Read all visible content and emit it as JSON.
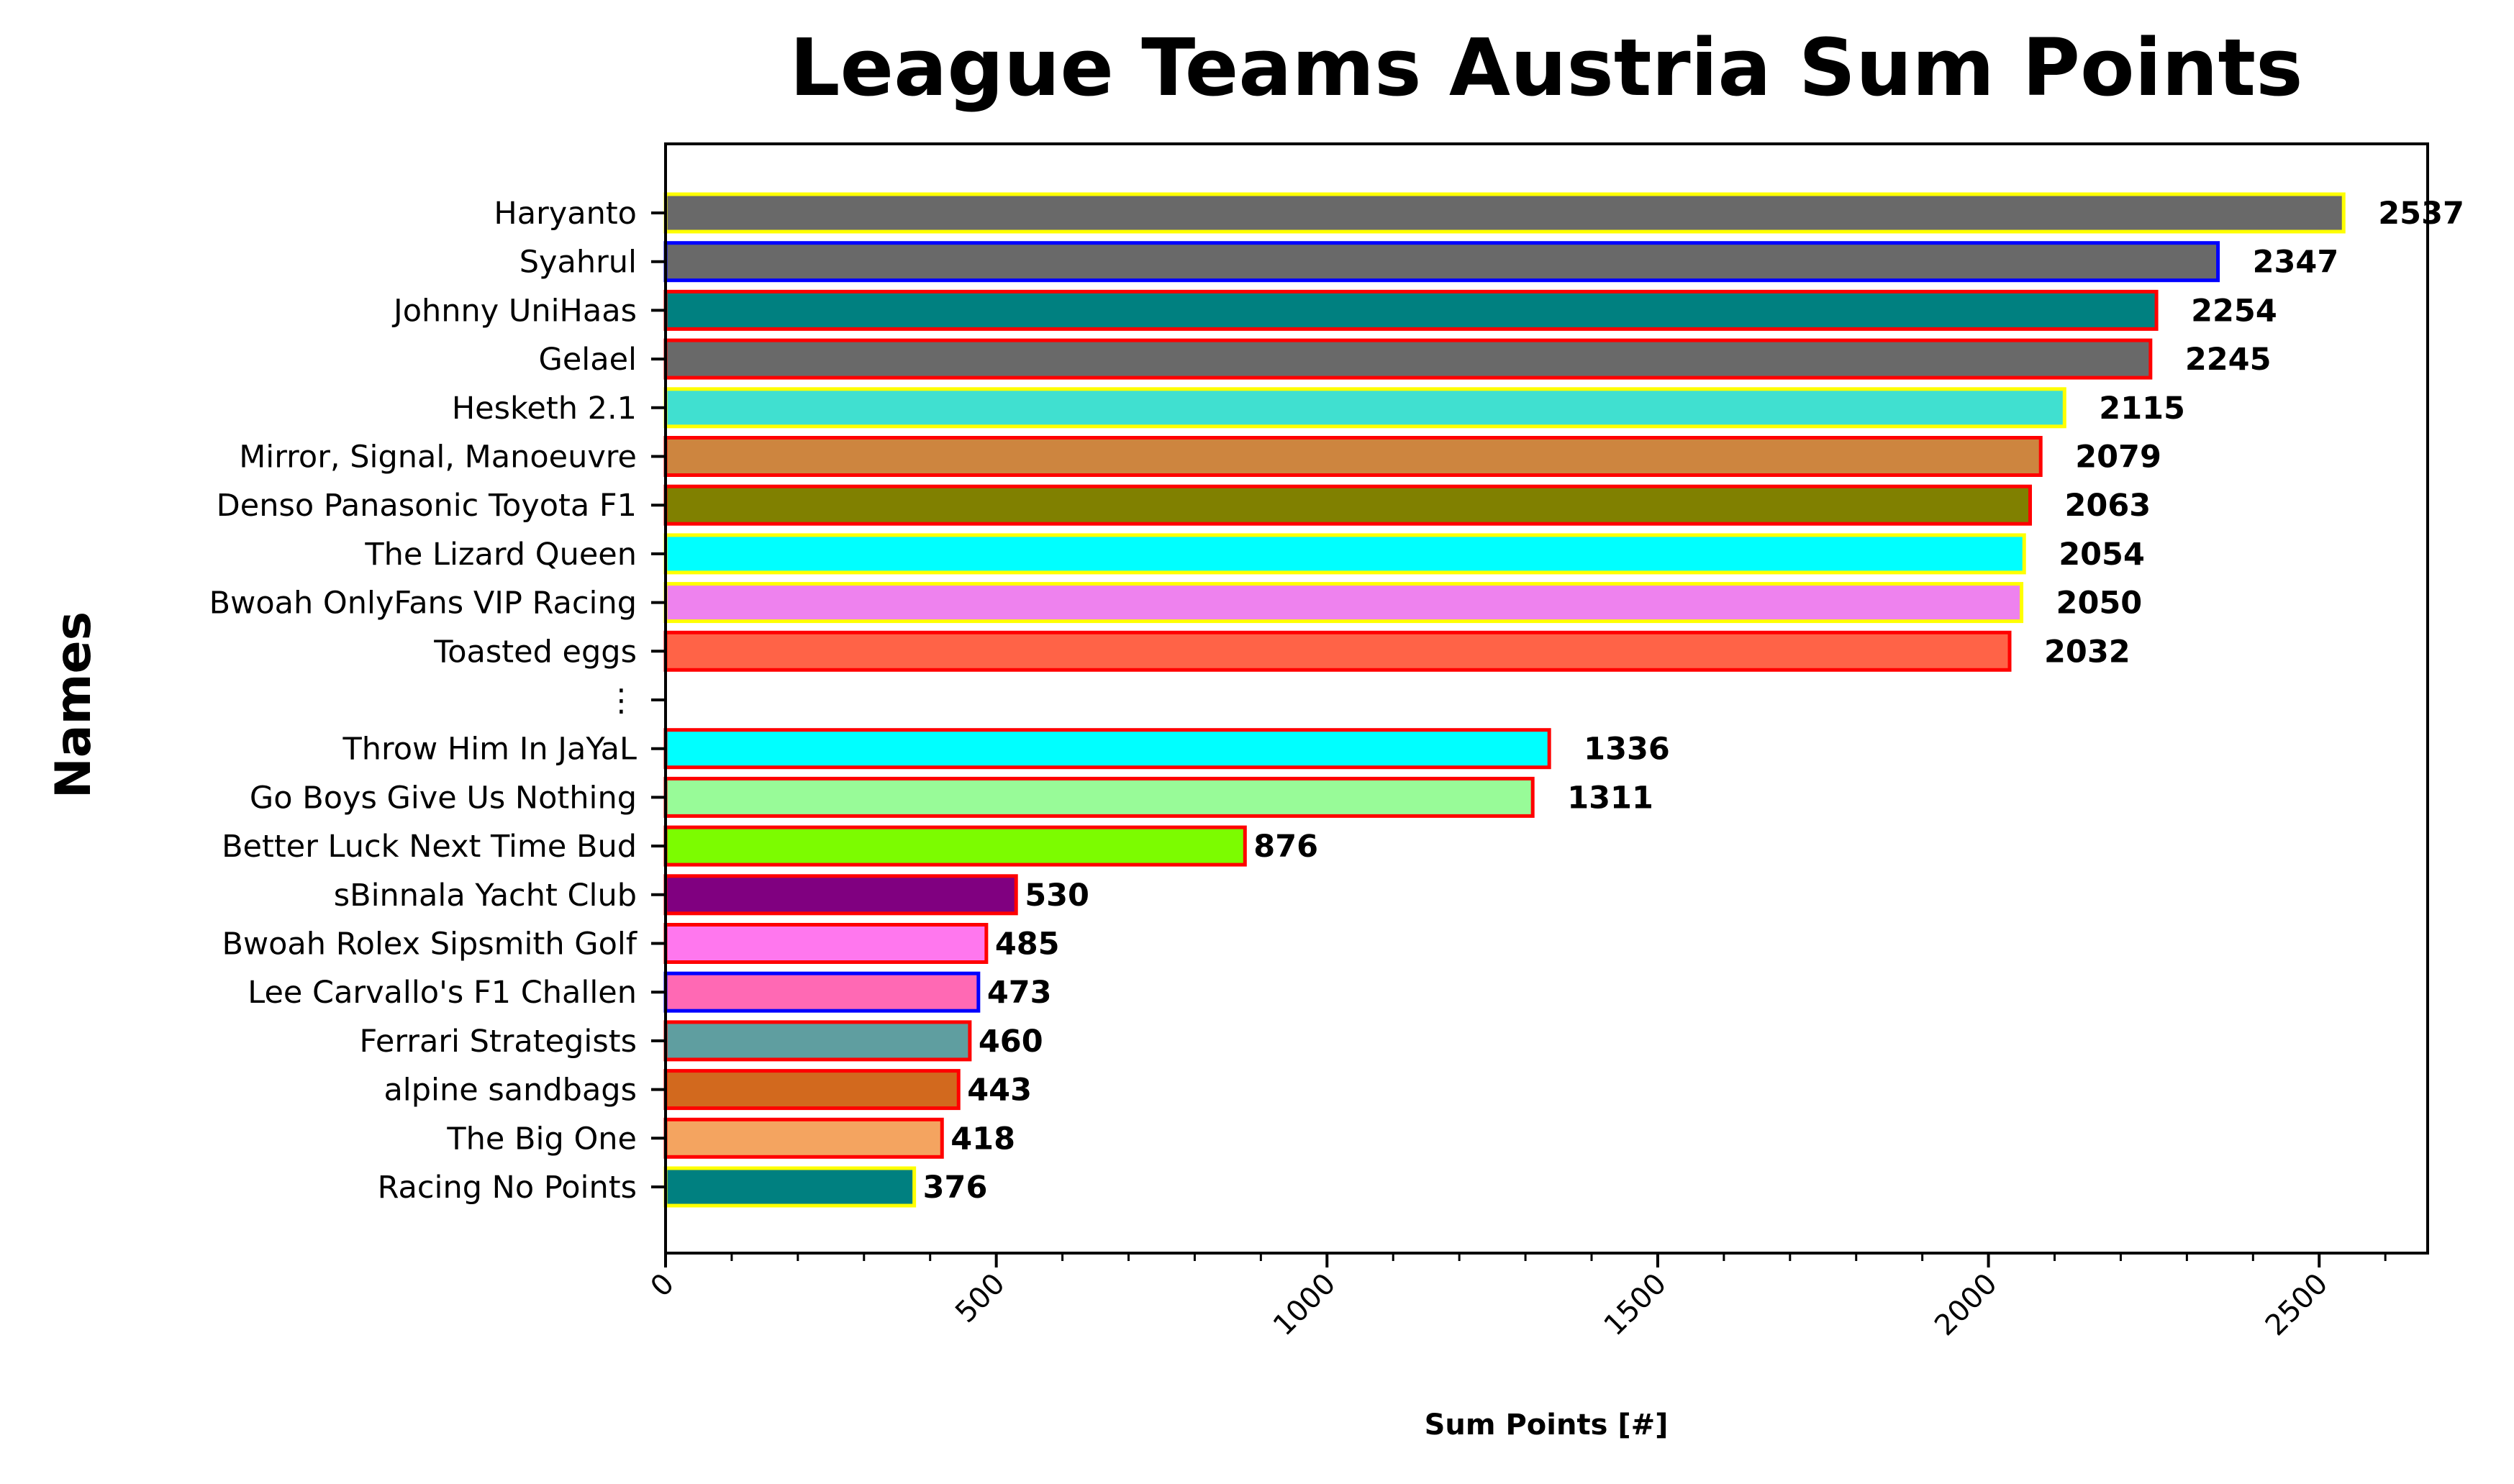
{
  "chart_data": {
    "type": "bar",
    "orientation": "horizontal",
    "title": "League Teams Austria Sum Points",
    "xlabel": "Sum Points [#]",
    "ylabel": "Names",
    "xlim": [
      0,
      2664
    ],
    "xticks": [
      "0",
      "500",
      "1000",
      "1500",
      "2000",
      "2500"
    ],
    "xtick_values": [
      0,
      500,
      1000,
      1500,
      2000,
      2500
    ],
    "grid": false,
    "categories": [
      "Haryanto",
      "Syahrul",
      "Johnny UniHaas",
      "Gelael",
      "Hesketh 2.1",
      "Mirror, Signal, Manoeuvre",
      "Denso Panasonic Toyota F1",
      "The Lizard Queen",
      "Bwoah OnlyFans VIP Racing",
      "Toasted eggs",
      "⋮",
      "Throw Him In JaYaL",
      "Go Boys Give Us Nothing",
      "Better Luck Next Time Bud",
      "sBinnala Yacht Club",
      "Bwoah Rolex Sipsmith Golf",
      "Lee Carvallo's F1 Challen",
      "Ferrari Strategists",
      "alpine sandbags",
      "The Big One",
      "Racing No Points"
    ],
    "values": [
      2537,
      2347,
      2254,
      2245,
      2115,
      2079,
      2063,
      2054,
      2050,
      2032,
      null,
      1336,
      1311,
      876,
      530,
      485,
      473,
      460,
      443,
      418,
      376
    ],
    "value_labels": [
      "2537",
      "2347",
      "2254",
      "2245",
      "2115",
      "2079",
      "2063",
      "2054",
      "2050",
      "2032",
      "",
      "1336",
      "1311",
      "876",
      "530",
      "485",
      "473",
      "460",
      "443",
      "418",
      "376"
    ],
    "fill_colors": [
      "#696969",
      "#696969",
      "#008080",
      "#696969",
      "#40e0d0",
      "#cd853f",
      "#808000",
      "#00ffff",
      "#ee82ee",
      "#ff6347",
      null,
      "#00ffff",
      "#98fb98",
      "#7cfc00",
      "#800080",
      "#ff77ee",
      "#ff69b4",
      "#5f9ea0",
      "#d2691e",
      "#f4a460",
      "#008080"
    ],
    "edge_colors": [
      "#ffff00",
      "#0000ff",
      "#ff0000",
      "#ff0000",
      "#ffff00",
      "#ff0000",
      "#ff0000",
      "#ffff00",
      "#ffff00",
      "#ff0000",
      null,
      "#ff0000",
      "#ff0000",
      "#ff0000",
      "#ff0000",
      "#ff0000",
      "#0000ff",
      "#ff0000",
      "#ff0000",
      "#ff0000",
      "#ffff00"
    ]
  }
}
